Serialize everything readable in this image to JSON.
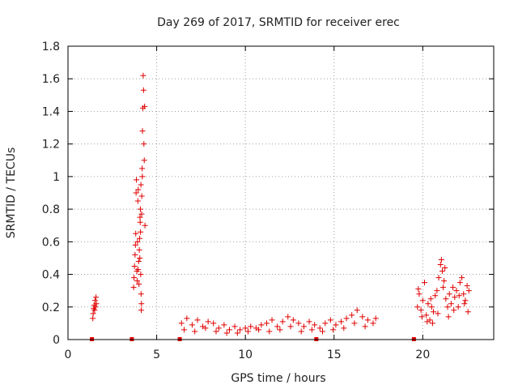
{
  "chart_data": {
    "type": "scatter",
    "title": "Day 269 of 2017, SRMTID for receiver erec",
    "xlabel": "GPS time / hours",
    "ylabel": "SRMTID / TECUs",
    "xlim": [
      0,
      24
    ],
    "ylim": [
      0,
      1.8
    ],
    "xticks": [
      0,
      5,
      10,
      15,
      20
    ],
    "yticks": [
      0,
      0.2,
      0.4,
      0.6,
      0.8,
      1,
      1.2,
      1.4,
      1.6,
      1.8
    ],
    "ytick_labels": [
      "0",
      "0.2",
      "0.4",
      "0.6",
      "0.8",
      "1",
      "1.2",
      "1.4",
      "1.6",
      "1.8"
    ],
    "grid": true,
    "marker": "+",
    "color": "#e00000",
    "zero_markers_x": [
      1.35,
      3.6,
      6.3,
      14.0,
      19.5
    ],
    "series": [
      {
        "name": "SRMTID",
        "points": [
          [
            1.4,
            0.13
          ],
          [
            1.42,
            0.16
          ],
          [
            1.45,
            0.19
          ],
          [
            1.47,
            0.21
          ],
          [
            1.5,
            0.18
          ],
          [
            1.52,
            0.24
          ],
          [
            1.55,
            0.2
          ],
          [
            1.58,
            0.26
          ],
          [
            1.6,
            0.22
          ],
          [
            3.7,
            0.32
          ],
          [
            3.72,
            0.38
          ],
          [
            3.75,
            0.45
          ],
          [
            3.78,
            0.52
          ],
          [
            3.8,
            0.58
          ],
          [
            3.82,
            0.65
          ],
          [
            3.84,
            0.9
          ],
          [
            3.86,
            0.98
          ],
          [
            3.88,
            0.42
          ],
          [
            3.9,
            0.36
          ],
          [
            3.92,
            0.6
          ],
          [
            3.94,
            0.85
          ],
          [
            3.96,
            0.92
          ],
          [
            3.98,
            0.48
          ],
          [
            4.0,
            0.34
          ],
          [
            4.02,
            0.55
          ],
          [
            4.04,
            0.62
          ],
          [
            4.06,
            0.75
          ],
          [
            4.08,
            0.8
          ],
          [
            4.1,
            0.4
          ],
          [
            4.12,
            0.28
          ],
          [
            4.14,
            0.22
          ],
          [
            4.16,
            0.88
          ],
          [
            4.18,
            1.05
          ],
          [
            4.2,
            1.28
          ],
          [
            4.22,
            1.42
          ],
          [
            4.24,
            1.62
          ],
          [
            4.26,
            1.53
          ],
          [
            4.28,
            1.2
          ],
          [
            4.3,
            1.1
          ],
          [
            4.32,
            1.43
          ],
          [
            4.34,
            0.7
          ],
          [
            4.05,
            0.5
          ],
          [
            3.95,
            0.43
          ],
          [
            4.09,
            0.66
          ],
          [
            4.15,
            0.77
          ],
          [
            4.19,
            1.0
          ],
          [
            4.11,
            0.95
          ],
          [
            4.07,
            0.72
          ],
          [
            4.13,
            0.18
          ],
          [
            6.4,
            0.1
          ],
          [
            6.7,
            0.13
          ],
          [
            7.0,
            0.09
          ],
          [
            7.3,
            0.12
          ],
          [
            7.6,
            0.08
          ],
          [
            7.9,
            0.11
          ],
          [
            8.2,
            0.1
          ],
          [
            8.5,
            0.07
          ],
          [
            8.8,
            0.09
          ],
          [
            9.1,
            0.06
          ],
          [
            9.4,
            0.08
          ],
          [
            9.7,
            0.06
          ],
          [
            10.0,
            0.07
          ],
          [
            10.3,
            0.08
          ],
          [
            10.6,
            0.07
          ],
          [
            10.9,
            0.09
          ],
          [
            11.2,
            0.1
          ],
          [
            11.5,
            0.12
          ],
          [
            11.8,
            0.08
          ],
          [
            12.1,
            0.11
          ],
          [
            12.4,
            0.14
          ],
          [
            12.7,
            0.12
          ],
          [
            13.0,
            0.1
          ],
          [
            13.3,
            0.08
          ],
          [
            13.6,
            0.11
          ],
          [
            13.9,
            0.09
          ],
          [
            14.2,
            0.07
          ],
          [
            14.5,
            0.1
          ],
          [
            14.8,
            0.12
          ],
          [
            15.1,
            0.09
          ],
          [
            15.4,
            0.11
          ],
          [
            15.7,
            0.13
          ],
          [
            16.0,
            0.15
          ],
          [
            16.3,
            0.18
          ],
          [
            16.6,
            0.14
          ],
          [
            16.9,
            0.12
          ],
          [
            17.2,
            0.1
          ],
          [
            6.55,
            0.06
          ],
          [
            7.15,
            0.05
          ],
          [
            7.75,
            0.07
          ],
          [
            8.35,
            0.05
          ],
          [
            8.95,
            0.04
          ],
          [
            9.55,
            0.04
          ],
          [
            10.15,
            0.05
          ],
          [
            10.75,
            0.06
          ],
          [
            11.35,
            0.05
          ],
          [
            11.95,
            0.06
          ],
          [
            12.55,
            0.08
          ],
          [
            13.15,
            0.05
          ],
          [
            13.75,
            0.06
          ],
          [
            14.35,
            0.05
          ],
          [
            14.95,
            0.06
          ],
          [
            15.55,
            0.07
          ],
          [
            16.15,
            0.1
          ],
          [
            16.75,
            0.08
          ],
          [
            17.35,
            0.13
          ],
          [
            19.7,
            0.2
          ],
          [
            19.8,
            0.28
          ],
          [
            19.9,
            0.18
          ],
          [
            20.0,
            0.24
          ],
          [
            20.1,
            0.35
          ],
          [
            20.2,
            0.15
          ],
          [
            20.3,
            0.22
          ],
          [
            20.4,
            0.12
          ],
          [
            20.5,
            0.2
          ],
          [
            20.6,
            0.17
          ],
          [
            20.7,
            0.27
          ],
          [
            20.8,
            0.3
          ],
          [
            20.9,
            0.38
          ],
          [
            21.0,
            0.46
          ],
          [
            21.05,
            0.49
          ],
          [
            21.1,
            0.42
          ],
          [
            21.2,
            0.36
          ],
          [
            21.3,
            0.25
          ],
          [
            21.4,
            0.2
          ],
          [
            21.5,
            0.28
          ],
          [
            21.6,
            0.22
          ],
          [
            21.7,
            0.32
          ],
          [
            21.8,
            0.26
          ],
          [
            21.9,
            0.3
          ],
          [
            22.0,
            0.2
          ],
          [
            22.1,
            0.35
          ],
          [
            22.2,
            0.38
          ],
          [
            22.3,
            0.28
          ],
          [
            22.4,
            0.24
          ],
          [
            22.5,
            0.33
          ],
          [
            22.6,
            0.3
          ],
          [
            19.75,
            0.31
          ],
          [
            19.95,
            0.14
          ],
          [
            20.25,
            0.11
          ],
          [
            20.55,
            0.1
          ],
          [
            20.85,
            0.16
          ],
          [
            21.15,
            0.32
          ],
          [
            21.45,
            0.14
          ],
          [
            21.75,
            0.18
          ],
          [
            22.05,
            0.27
          ],
          [
            22.35,
            0.22
          ],
          [
            22.55,
            0.17
          ],
          [
            20.45,
            0.25
          ],
          [
            21.25,
            0.44
          ]
        ]
      }
    ]
  }
}
